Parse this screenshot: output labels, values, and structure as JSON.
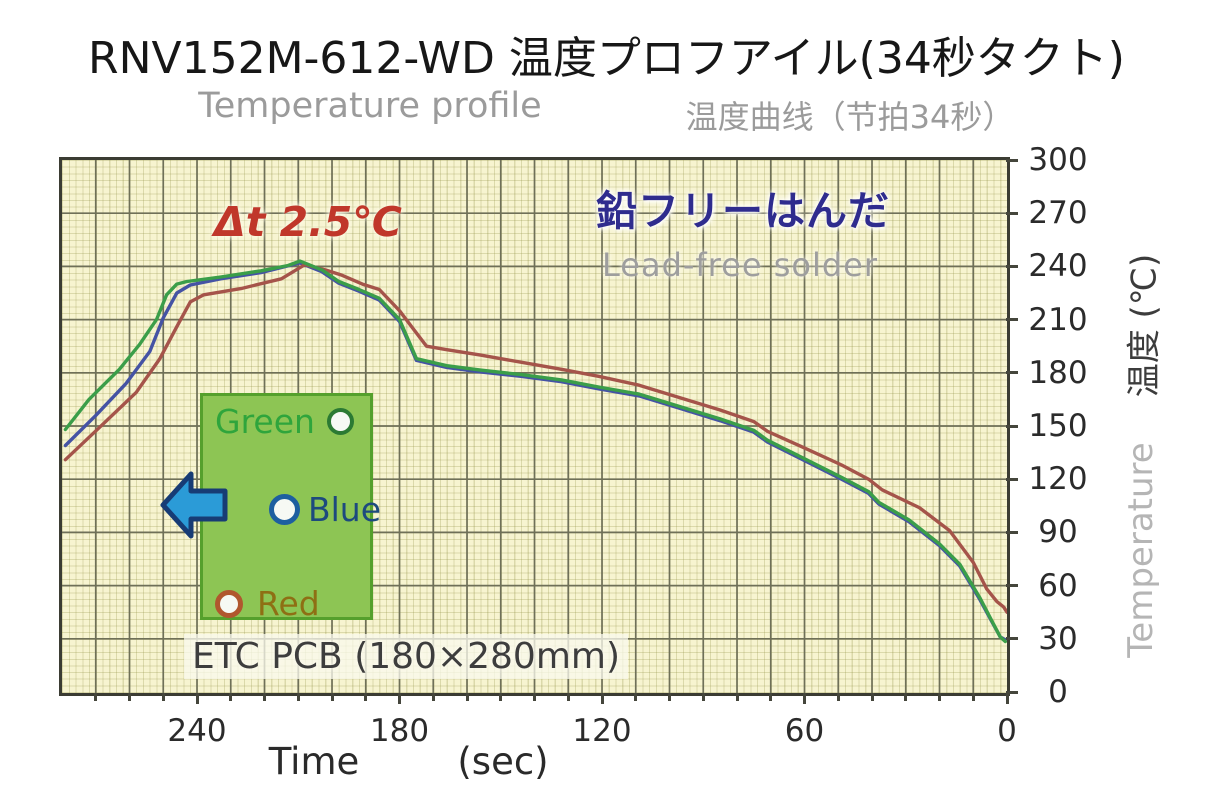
{
  "title": "RNV152M-612-WD 温度プロフアイル(34秒タクト)",
  "subtitle_en": "Temperature profile",
  "subtitle_cn": "温度曲线（节拍34秒）",
  "annotations": {
    "delta_t": "Δt 2.5℃",
    "lead_free_ja": "鉛フリーはんだ",
    "lead_free_en": "Lead-free solder",
    "pcb_caption": "ETC PCB (180×280mm)"
  },
  "legend": {
    "green": {
      "label": "Green",
      "ring_color": "#2b7a33"
    },
    "blue": {
      "label": "Blue",
      "ring_color": "#1d5fa0"
    },
    "red": {
      "label": "Red",
      "ring_color": "#b0572e"
    }
  },
  "x_axis": {
    "label": "Time",
    "unit": "(sec)"
  },
  "y_axis": {
    "label_ja": "温度 (℃)",
    "label_en": "Temperature"
  },
  "colors": {
    "plot_background": "#f7f4d0",
    "major_grid": "#6f7058",
    "green_curve": "#3b9e49",
    "blue_curve": "#4553a4",
    "red_curve": "#a5544a",
    "delta_text": "#c0372a",
    "lead_free_text": "#2f2c8e",
    "pcb_box_fill": "#8dc554"
  },
  "chart_data": {
    "type": "line",
    "title": "RNV152M-612-WD temperature profile (34 s takt)",
    "xlabel": "Time (sec)",
    "ylabel": "Temperature 温度 (℃)",
    "x_axis": {
      "range": [
        0,
        280
      ],
      "reversed": true,
      "tick_labels": [
        240,
        180,
        120,
        60,
        0
      ],
      "major_grid_step_sec": 10
    },
    "y_axis": {
      "range": [
        0,
        300
      ],
      "tick_step": 30,
      "tick_labels": [
        300,
        270,
        240,
        210,
        180,
        150,
        120,
        90,
        60,
        30,
        0
      ]
    },
    "grid": "major+minor",
    "legend_position": "inset PCB schematic, lower-left",
    "annotation_peak_spread_c": 2.5,
    "series": [
      {
        "name": "Green",
        "color": "#3b9e49",
        "points": [
          [
            279,
            148
          ],
          [
            272,
            165
          ],
          [
            263,
            182
          ],
          [
            257,
            196
          ],
          [
            252,
            210
          ],
          [
            249,
            224
          ],
          [
            246,
            230
          ],
          [
            243,
            231.5
          ],
          [
            233,
            234
          ],
          [
            221,
            237.5
          ],
          [
            213,
            240.5
          ],
          [
            209.5,
            243
          ],
          [
            203,
            238
          ],
          [
            198,
            231.5
          ],
          [
            192,
            227
          ],
          [
            186,
            222
          ],
          [
            180,
            210
          ],
          [
            175,
            188
          ],
          [
            166,
            184
          ],
          [
            156,
            181.5
          ],
          [
            144,
            179
          ],
          [
            132,
            176
          ],
          [
            121,
            172
          ],
          [
            109,
            168
          ],
          [
            97,
            161
          ],
          [
            85,
            154
          ],
          [
            75,
            147.5
          ],
          [
            71,
            142
          ],
          [
            61,
            132.5
          ],
          [
            49,
            121
          ],
          [
            41,
            113
          ],
          [
            38,
            107
          ],
          [
            29,
            97
          ],
          [
            20,
            83.5
          ],
          [
            14,
            72
          ],
          [
            8,
            53
          ],
          [
            5,
            42
          ],
          [
            2,
            31
          ],
          [
            0.5,
            28.5
          ]
        ]
      },
      {
        "name": "Blue",
        "color": "#4553a4",
        "points": [
          [
            279,
            139
          ],
          [
            270,
            156
          ],
          [
            261,
            174
          ],
          [
            254,
            192
          ],
          [
            250,
            211
          ],
          [
            246,
            225
          ],
          [
            242,
            229.5
          ],
          [
            233,
            233
          ],
          [
            221,
            236.5
          ],
          [
            209.5,
            242
          ],
          [
            203,
            237
          ],
          [
            198,
            230.5
          ],
          [
            192,
            226
          ],
          [
            186,
            221
          ],
          [
            180,
            209
          ],
          [
            175,
            187
          ],
          [
            166,
            183
          ],
          [
            156,
            180.5
          ],
          [
            144,
            178
          ],
          [
            132,
            175
          ],
          [
            121,
            171
          ],
          [
            109,
            167
          ],
          [
            97,
            160
          ],
          [
            85,
            153
          ],
          [
            75,
            146.5
          ],
          [
            71,
            141
          ],
          [
            61,
            131.5
          ],
          [
            49,
            120
          ],
          [
            41,
            112
          ],
          [
            38,
            106
          ],
          [
            29,
            96
          ],
          [
            20,
            82.5
          ],
          [
            14,
            71
          ],
          [
            8,
            52
          ],
          [
            5,
            41.5
          ],
          [
            2,
            31
          ],
          [
            0.5,
            29.5
          ]
        ]
      },
      {
        "name": "Red",
        "color": "#a5544a",
        "points": [
          [
            279,
            131
          ],
          [
            269,
            149
          ],
          [
            258,
            169
          ],
          [
            251,
            188
          ],
          [
            246,
            206
          ],
          [
            242,
            220
          ],
          [
            238,
            224
          ],
          [
            227,
            227.5
          ],
          [
            215,
            233
          ],
          [
            208,
            241
          ],
          [
            202,
            238
          ],
          [
            197,
            235
          ],
          [
            191,
            230
          ],
          [
            186,
            227
          ],
          [
            180,
            215
          ],
          [
            176,
            205
          ],
          [
            172,
            195
          ],
          [
            166,
            193
          ],
          [
            156,
            190
          ],
          [
            144,
            186
          ],
          [
            132,
            182
          ],
          [
            121,
            178
          ],
          [
            109,
            173
          ],
          [
            97,
            166
          ],
          [
            85,
            159
          ],
          [
            75,
            152.5
          ],
          [
            71,
            147
          ],
          [
            61,
            138.5
          ],
          [
            49,
            128
          ],
          [
            41,
            120
          ],
          [
            37,
            114
          ],
          [
            26,
            104
          ],
          [
            17,
            91
          ],
          [
            10,
            73
          ],
          [
            6,
            58
          ],
          [
            3,
            51
          ],
          [
            1,
            48
          ],
          [
            0,
            45
          ]
        ]
      }
    ]
  }
}
